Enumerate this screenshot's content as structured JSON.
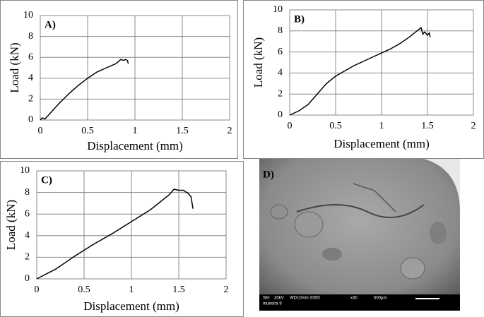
{
  "chart_data": [
    {
      "type": "line",
      "title": "A)",
      "x_label": "Displacement (mm)",
      "y_label": "Load (kN)",
      "x": [
        0,
        0.02,
        0.05,
        0.1,
        0.2,
        0.3,
        0.4,
        0.5,
        0.6,
        0.7,
        0.8,
        0.85,
        0.88,
        0.9,
        0.92,
        0.93
      ],
      "values": [
        0,
        0.2,
        0.1,
        0.6,
        1.6,
        2.5,
        3.3,
        4.0,
        4.6,
        5.0,
        5.4,
        5.8,
        5.7,
        5.8,
        5.7,
        5.4
      ],
      "color": "#000000",
      "xlim": [
        0,
        2
      ],
      "xticks": [
        0,
        0.5,
        1,
        1.5,
        2
      ],
      "ylim": [
        0,
        10
      ],
      "yticks": [
        0,
        2,
        4,
        6,
        8,
        10
      ],
      "grid": true
    },
    {
      "type": "line",
      "title": "B)",
      "x_label": "Displacement (mm)",
      "y_label": "Load (kN)",
      "x": [
        0,
        0.1,
        0.2,
        0.3,
        0.4,
        0.5,
        0.6,
        0.7,
        0.8,
        0.9,
        1.0,
        1.1,
        1.2,
        1.3,
        1.4,
        1.43,
        1.45,
        1.47,
        1.5,
        1.52,
        1.53
      ],
      "values": [
        0,
        0.4,
        1.0,
        2.0,
        3.0,
        3.7,
        4.2,
        4.7,
        5.1,
        5.5,
        5.9,
        6.3,
        6.8,
        7.4,
        8.1,
        8.3,
        7.7,
        7.9,
        7.6,
        7.8,
        7.4
      ],
      "color": "#000000",
      "xlim": [
        0,
        2
      ],
      "xticks": [
        0,
        0.5,
        1,
        1.5,
        2
      ],
      "ylim": [
        0,
        10
      ],
      "yticks": [
        0,
        2,
        4,
        6,
        8,
        10
      ],
      "grid": true
    },
    {
      "type": "line",
      "title": "C)",
      "x_label": "Displacement (mm)",
      "y_label": "Load (kN)",
      "x": [
        0,
        0.2,
        0.4,
        0.6,
        0.8,
        1.0,
        1.2,
        1.4,
        1.45,
        1.5,
        1.55,
        1.6,
        1.63,
        1.65
      ],
      "values": [
        0,
        0.9,
        2.1,
        3.2,
        4.2,
        5.3,
        6.4,
        7.8,
        8.3,
        8.2,
        8.2,
        7.9,
        7.6,
        6.5
      ],
      "color": "#000000",
      "xlim": [
        0,
        2
      ],
      "xticks": [
        0,
        0.5,
        1,
        1.5,
        2
      ],
      "ylim": [
        0,
        10
      ],
      "yticks": [
        0,
        2,
        4,
        6,
        8,
        10
      ],
      "grid": true
    }
  ],
  "image_panel": {
    "label": "D)",
    "caption": [
      "SEI",
      "20kV",
      "WD10mm",
      "SS50",
      "x30",
      "500μm",
      "muestra 9"
    ]
  }
}
